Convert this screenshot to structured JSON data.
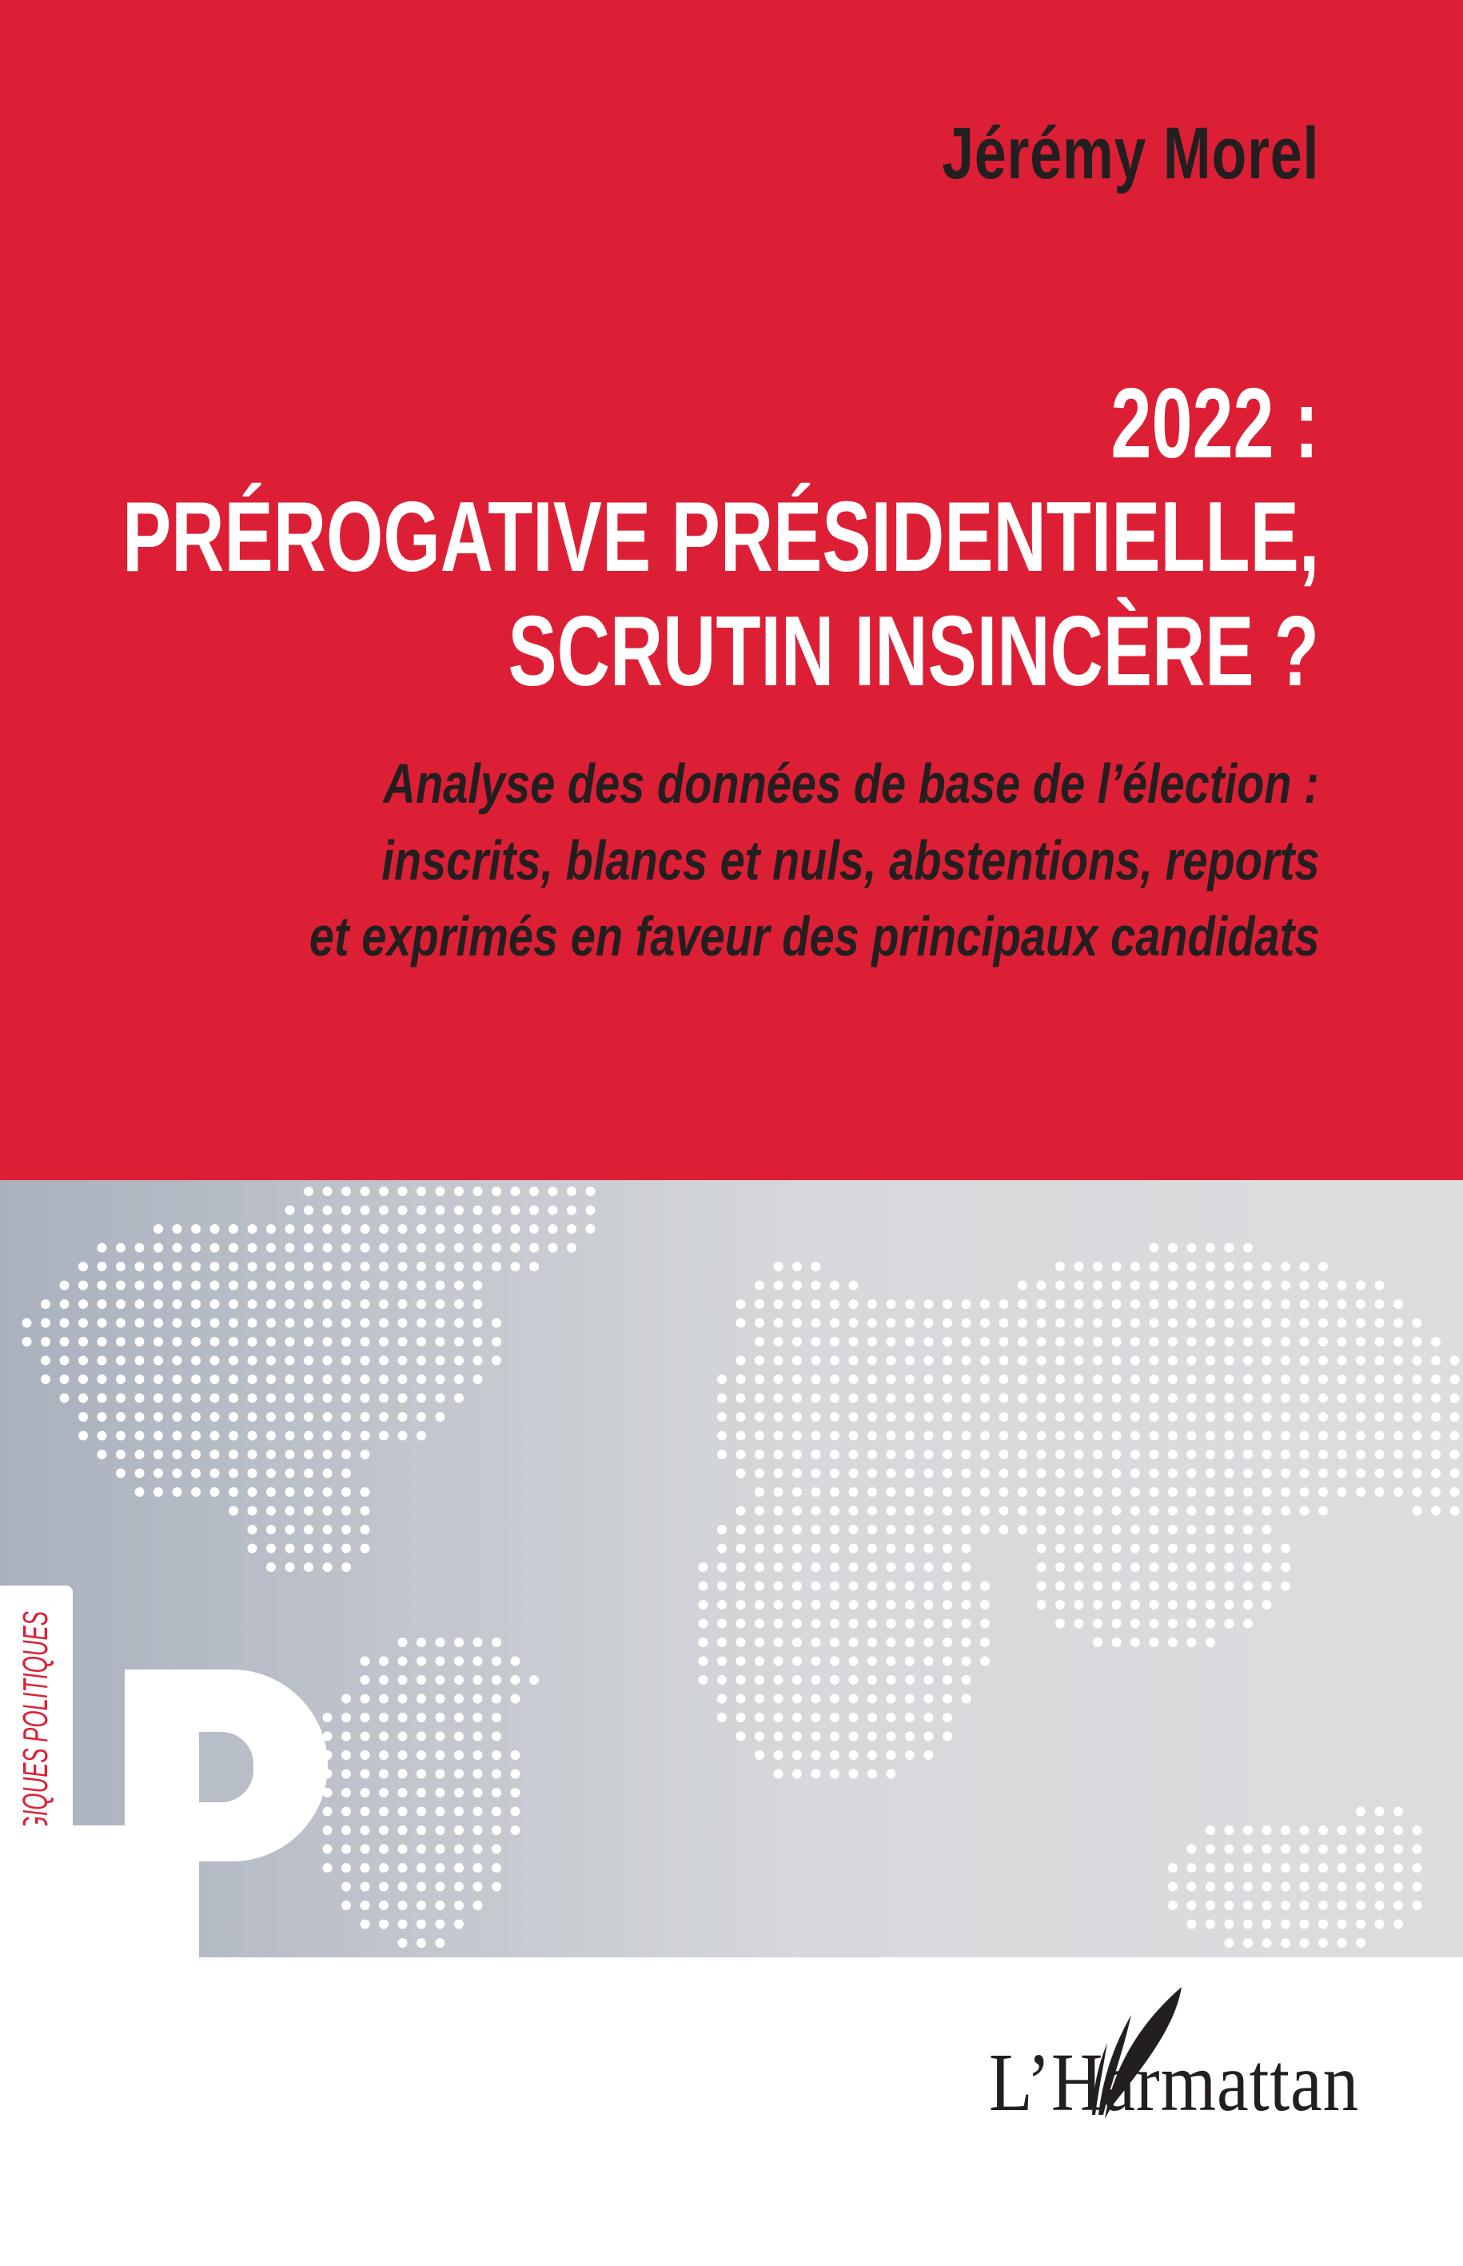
{
  "cover": {
    "author": "Jérémy Morel",
    "title_lines": [
      "2022 :",
      "PRÉROGATIVE PRÉSIDENTIELLE,",
      "SCRUTIN INSINCÈRE ?"
    ],
    "subtitle_lines": [
      "Analyse des données de base de l’élection :",
      "inscrits, blancs et nuls, abstentions, reports",
      "et exprimés en faveur des principaux candidats"
    ],
    "collection": "LOGIQUES POLITIQUES",
    "collection_logo": "LP",
    "publisher": "L’Harmattan",
    "colors": {
      "brand_red": "#dd1f35",
      "text_dark": "#231f20",
      "band_gray": "#c3c7ce"
    },
    "background_image": "dotted-world-map"
  }
}
